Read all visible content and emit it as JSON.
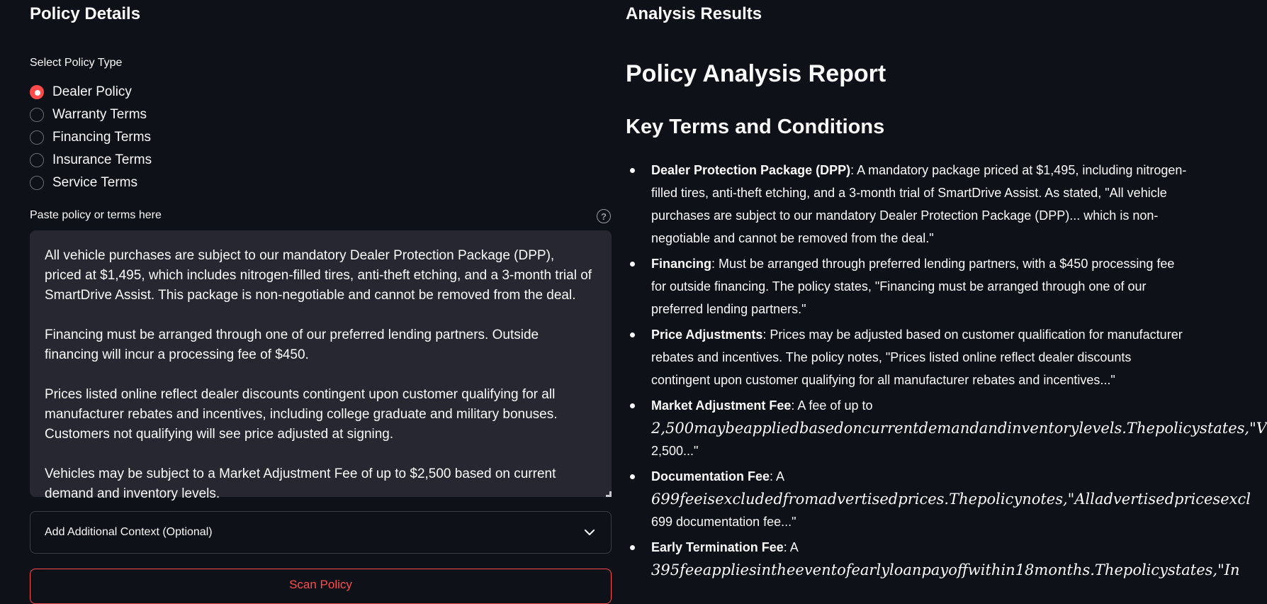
{
  "left_panel": {
    "heading": "Policy Details",
    "policy_type": {
      "label": "Select Policy Type",
      "options": [
        "Dealer Policy",
        "Warranty Terms",
        "Financing Terms",
        "Insurance Terms",
        "Service Terms"
      ],
      "selected": "Dealer Policy"
    },
    "policy_text": {
      "label": "Paste policy or terms here",
      "help_symbol": "?",
      "paragraphs": [
        "All vehicle purchases are subject to our mandatory Dealer Protection Package (DPP), priced at $1,495, which includes nitrogen-filled tires, anti-theft etching, and a 3-month trial of SmartDrive Assist. This package is non-negotiable and cannot be removed from the deal.",
        "Financing must be arranged through one of our preferred lending partners. Outside financing will incur a processing fee of $450.",
        "Prices listed online reflect dealer discounts contingent upon customer qualifying for all manufacturer rebates and incentives, including college graduate and military bonuses. Customers not qualifying will see price adjusted at signing.",
        "Vehicles may be subject to a Market Adjustment Fee of up to $2,500 based on current demand and inventory levels."
      ]
    },
    "expander": {
      "label": "Add Additional Context (Optional)"
    },
    "scan_button": {
      "label": "Scan Policy"
    }
  },
  "right_panel": {
    "heading": "Analysis Results",
    "report_title": "Policy Analysis Report",
    "section_title": "Key Terms and Conditions",
    "terms": [
      {
        "term": "Dealer Protection Package (DPP)",
        "lines": [
          ": A mandatory package priced at $1,495, including nitrogen-",
          "filled tires, anti-theft etching, and a 3-month trial of SmartDrive Assist. As stated, \"All vehicle",
          "purchases are subject to our mandatory Dealer Protection Package (DPP)... which is non-",
          "negotiable and cannot be removed from the deal.\""
        ]
      },
      {
        "term": "Financing",
        "lines": [
          ": Must be arranged through preferred lending partners, with a $450 processing fee",
          "for outside financing. The policy states, \"Financing must be arranged through one of our",
          "preferred lending partners.\""
        ]
      },
      {
        "term": "Price Adjustments",
        "lines": [
          ": Prices may be adjusted based on customer qualification for manufacturer",
          "rebates and incentives. The policy notes, \"Prices listed online reflect dealer discounts",
          "contingent upon customer qualifying for all manufacturer rebates and incentives...\""
        ]
      },
      {
        "term": "Market Adjustment Fee",
        "first_line_rest": ": A fee of up to",
        "math_line": "2,500maybeappliedbasedoncurrentdemandandinventorylevels.Thepolicystates,\"V",
        "tail_line": "2,500...\""
      },
      {
        "term": "Documentation Fee",
        "first_line_rest": ": A",
        "math_line": "699feeisexcludedfromadvertisedprices.Thepolicynotes,\"Alladvertisedpricesexcl",
        "tail_line": "699 documentation fee...\""
      },
      {
        "term": "Early Termination Fee",
        "first_line_rest": ": A",
        "math_line": "395feeappliesintheeventofearlyloanpayoffwithin18months.Thepolicystates,\"In",
        "tail_line": ""
      }
    ]
  }
}
